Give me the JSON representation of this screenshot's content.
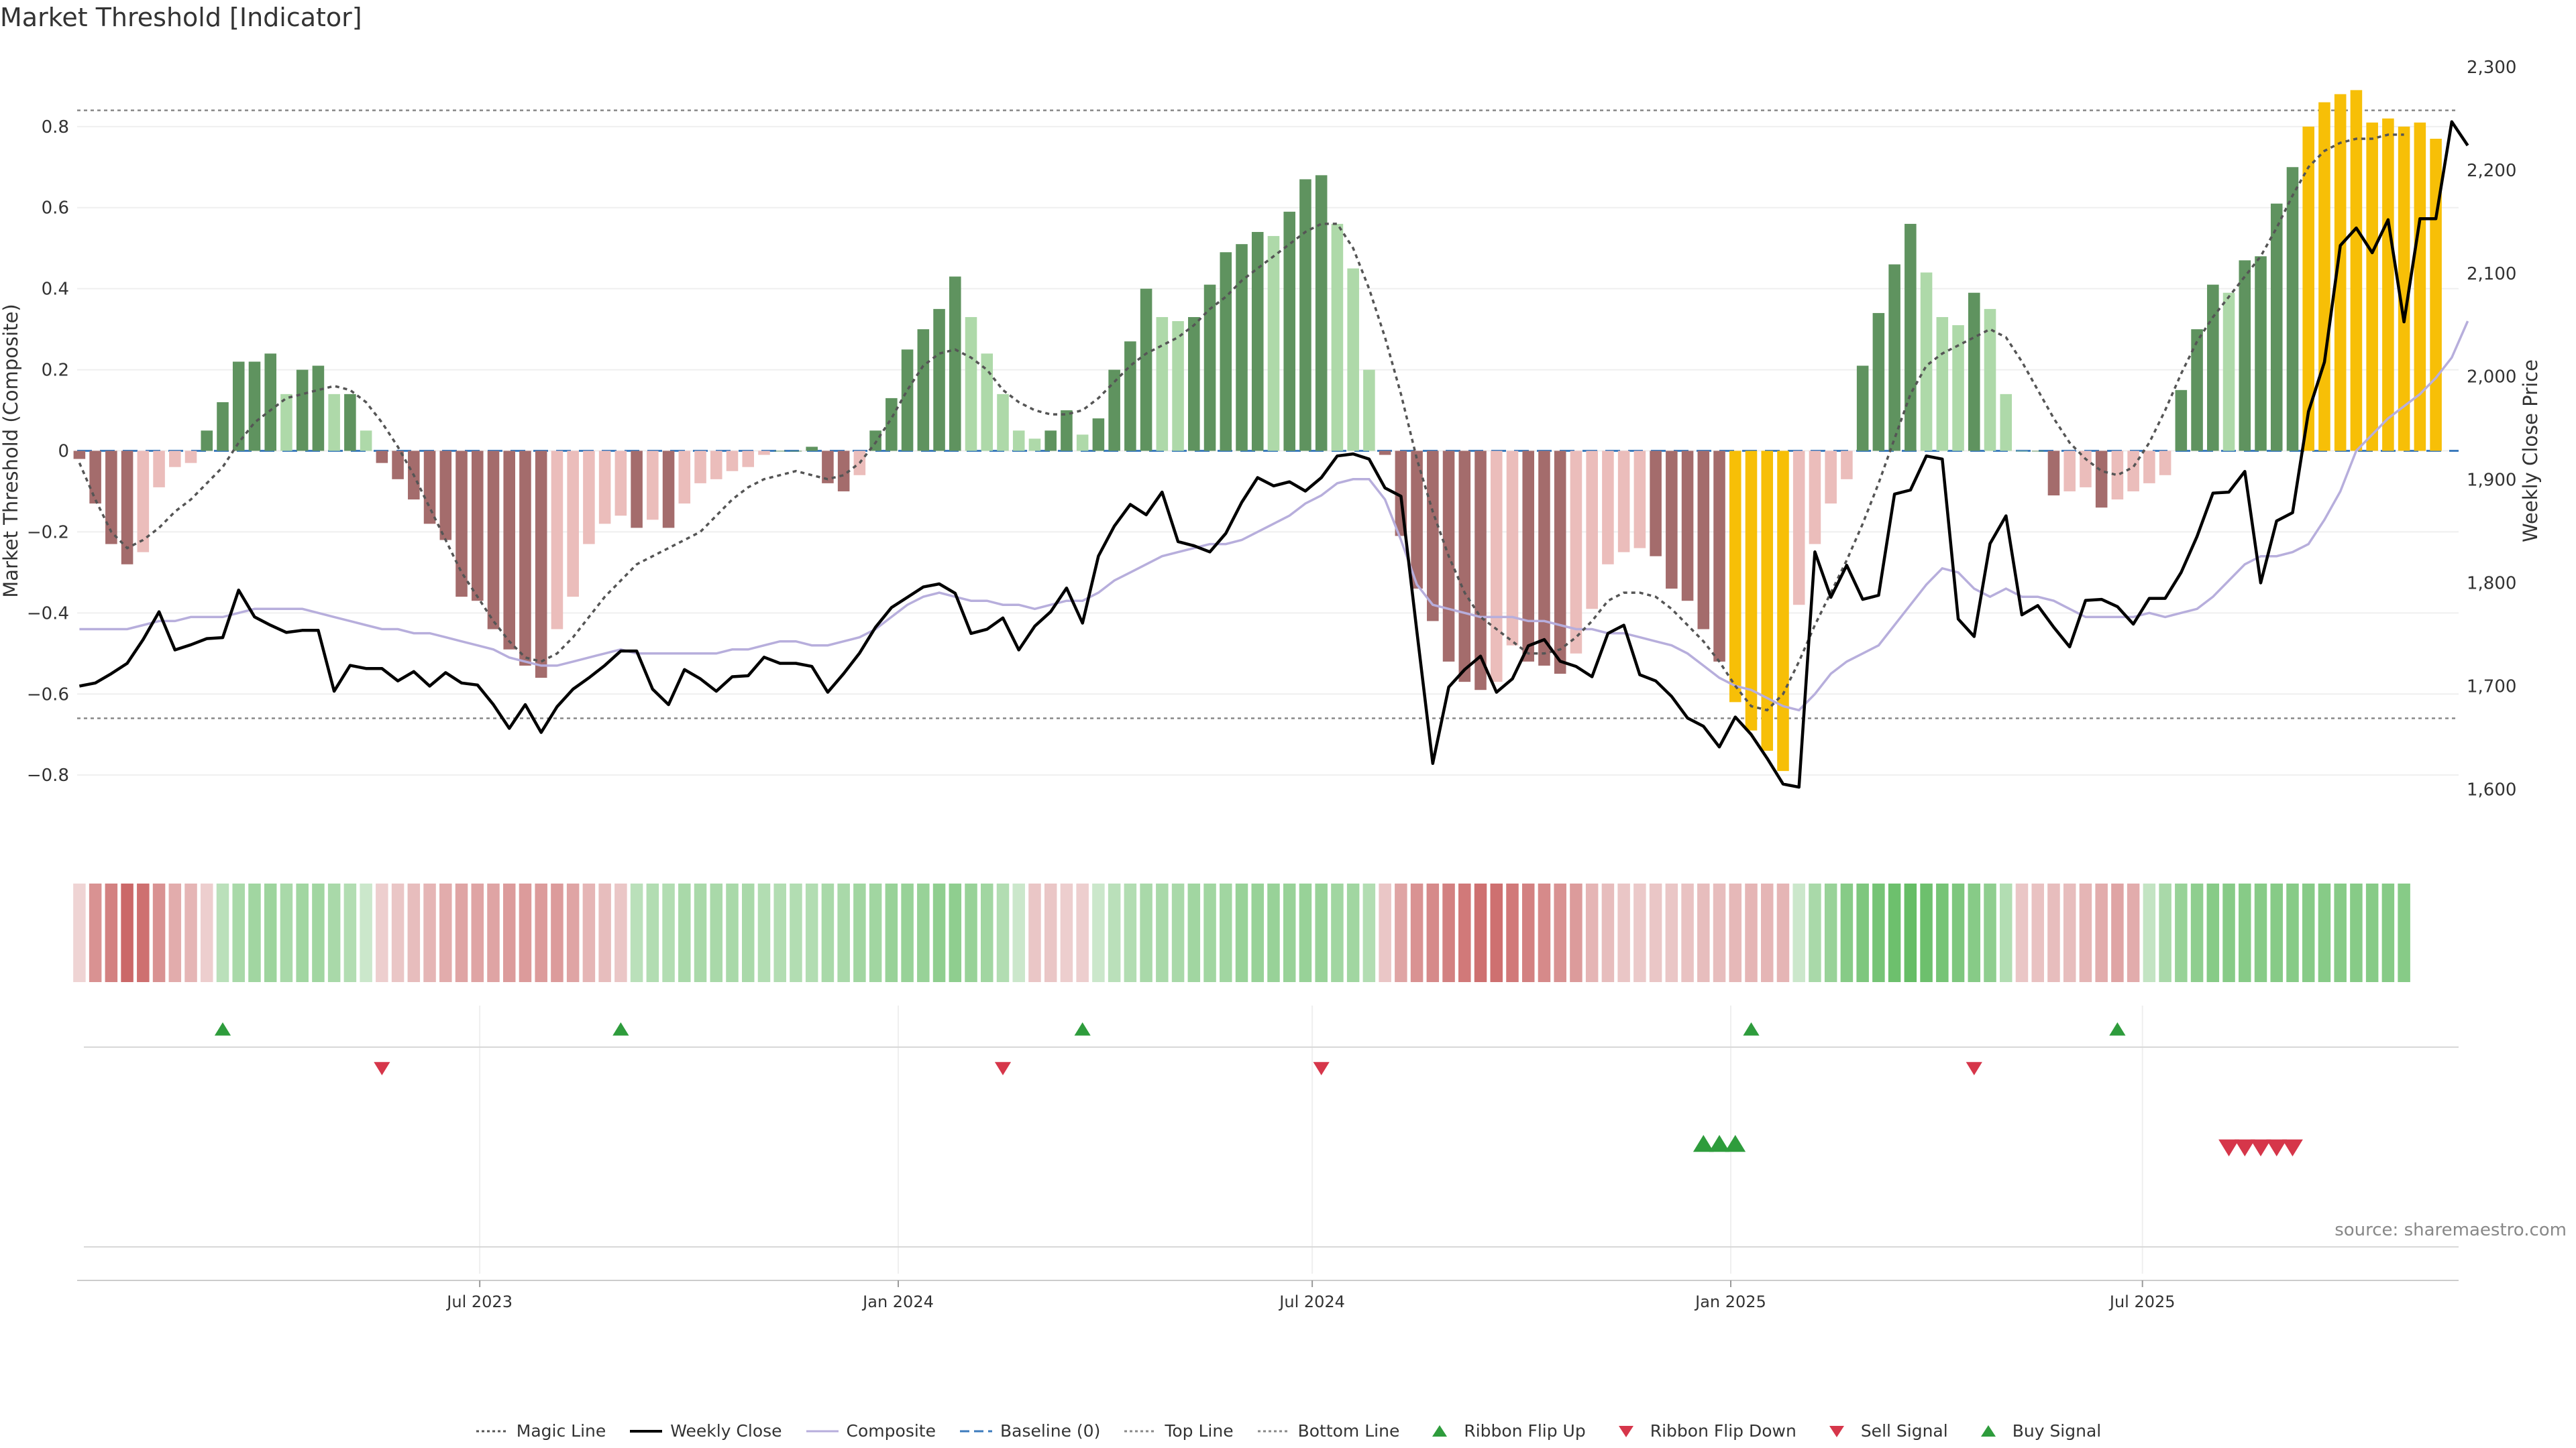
{
  "title": "Market Threshold [Indicator]",
  "source": "source: sharemaestro.com",
  "colors": {
    "strong_pos": "#5f935f",
    "weak_pos": "#aed9a9",
    "strong_neg": "#a46c6c",
    "weak_neg": "#ebbdbb",
    "extreme": "#f7bf07",
    "close": "#000000",
    "composite": "#b7aedc",
    "magic": "#555555",
    "baseline": "#3c7bbd",
    "threshold": "#888888",
    "buy": "#2e9c3c",
    "sell": "#d6364a"
  },
  "chart_data": {
    "type": "bar",
    "ylabel": "Market Threshold (Composite)",
    "y2label": "Weekly Close Price",
    "ylim": [
      -0.98,
      0.98
    ],
    "yticks": [
      -0.8,
      -0.6,
      -0.4,
      -0.2,
      0,
      0.2,
      0.4,
      0.6,
      0.8
    ],
    "ytick_labels": [
      "−0.8",
      "−0.6",
      "−0.4",
      "−0.2",
      "0",
      "0.2",
      "0.4",
      "0.6",
      "0.8"
    ],
    "y2lim": [
      1543,
      2313
    ],
    "y2ticks": [
      1600,
      1700,
      1800,
      1900,
      2000,
      2100,
      2200,
      2300
    ],
    "y2tick_labels": [
      "1,600",
      "1,700",
      "1,800",
      "1,900",
      "2,000",
      "2,100",
      "2,200",
      "2,300"
    ],
    "xlim": [
      "2023-01-05",
      "2025-11-17"
    ],
    "xticks": [
      {
        "date": "2023-07-01",
        "label": "Jul 2023"
      },
      {
        "date": "2024-01-01",
        "label": "Jan 2024"
      },
      {
        "date": "2024-07-01",
        "label": "Jul 2024"
      },
      {
        "date": "2025-01-01",
        "label": "Jan 2025"
      },
      {
        "date": "2025-07-01",
        "label": "Jul 2025"
      }
    ],
    "top_line": 0.84,
    "bottom_line": -0.66,
    "start_date": "2023-01-06",
    "bars": [
      -0.02,
      -0.13,
      -0.23,
      -0.28,
      -0.25,
      -0.09,
      -0.04,
      -0.03,
      0.05,
      0.12,
      0.22,
      0.22,
      0.24,
      0.14,
      0.2,
      0.21,
      0.14,
      0.14,
      0.05,
      -0.03,
      -0.07,
      -0.12,
      -0.18,
      -0.22,
      -0.36,
      -0.37,
      -0.44,
      -0.49,
      -0.53,
      -0.56,
      -0.44,
      -0.36,
      -0.23,
      -0.18,
      -0.16,
      -0.19,
      -0.17,
      -0.19,
      -0.13,
      -0.08,
      -0.07,
      -0.05,
      -0.04,
      -0.01,
      0,
      0,
      0.01,
      -0.08,
      -0.1,
      -0.06,
      0.05,
      0.13,
      0.25,
      0.3,
      0.35,
      0.43,
      0.33,
      0.24,
      0.14,
      0.05,
      0.03,
      0.05,
      0.1,
      0.04,
      0.08,
      0.2,
      0.27,
      0.4,
      0.33,
      0.32,
      0.33,
      0.41,
      0.49,
      0.51,
      0.54,
      0.53,
      0.59,
      0.67,
      0.68,
      0.56,
      0.45,
      0.2,
      -0.01,
      -0.21,
      -0.34,
      -0.42,
      -0.52,
      -0.57,
      -0.59,
      -0.57,
      -0.48,
      -0.52,
      -0.53,
      -0.55,
      -0.5,
      -0.39,
      -0.28,
      -0.25,
      -0.24,
      -0.26,
      -0.34,
      -0.37,
      -0.44,
      -0.52,
      -0.62,
      -0.69,
      -0.74,
      -0.79,
      -0.38,
      -0.23,
      -0.13,
      -0.07,
      0.21,
      0.34,
      0.46,
      0.56,
      0.44,
      0.33,
      0.31,
      0.39,
      0.35,
      0.14,
      0,
      0,
      -0.11,
      -0.1,
      -0.09,
      -0.14,
      -0.12,
      -0.1,
      -0.08,
      -0.06,
      0.15,
      0.3,
      0.41,
      0.39,
      0.47,
      0.48,
      0.61,
      0.7,
      0.8,
      0.86,
      0.88,
      0.89,
      0.81,
      0.82,
      0.8,
      0.81,
      0.77
    ],
    "series": [
      {
        "name": "Weekly Close",
        "values": [
          1700,
          1703,
          1712,
          1722,
          1745,
          1772,
          1735,
          1740,
          1746,
          1747,
          1793,
          1767,
          1759,
          1752,
          1754,
          1754,
          1695,
          1720,
          1717,
          1717,
          1705,
          1714,
          1700,
          1713,
          1703,
          1701,
          1682,
          1659,
          1682,
          1655,
          1680,
          1697,
          1708,
          1720,
          1734,
          1734,
          1697,
          1682,
          1716,
          1707,
          1695,
          1709,
          1710,
          1728,
          1722,
          1722,
          1719,
          1694,
          1712,
          1732,
          1757,
          1776,
          1786,
          1796,
          1799,
          1790,
          1751,
          1755,
          1766,
          1735,
          1758,
          1772,
          1795,
          1761,
          1826,
          1855,
          1876,
          1866,
          1888,
          1840,
          1836,
          1830,
          1848,
          1878,
          1902,
          1894,
          1898,
          1889,
          1902,
          1923,
          1925,
          1920,
          1892,
          1884,
          1753,
          1625,
          1699,
          1716,
          1729,
          1694,
          1707,
          1739,
          1745,
          1724,
          1719,
          1709,
          1751,
          1759,
          1711,
          1705,
          1690,
          1669,
          1661,
          1641,
          1670,
          1653,
          1630,
          1605,
          1602,
          1830,
          1786,
          1817,
          1784,
          1788,
          1886,
          1890,
          1923,
          1920,
          1765,
          1748,
          1838,
          1865,
          1769,
          1778,
          1757,
          1738,
          1783,
          1784,
          1777,
          1760,
          1785,
          1785,
          1810,
          1845,
          1887,
          1888,
          1908,
          1800,
          1860,
          1868,
          1966,
          2014,
          2127,
          2144,
          2120,
          2152,
          2053,
          2153,
          2153,
          2247,
          2224
        ]
      },
      {
        "name": "Composite",
        "values": [
          -0.44,
          -0.44,
          -0.44,
          -0.44,
          -0.43,
          -0.42,
          -0.42,
          -0.41,
          -0.41,
          -0.41,
          -0.4,
          -0.39,
          -0.39,
          -0.39,
          -0.39,
          -0.4,
          -0.41,
          -0.42,
          -0.43,
          -0.44,
          -0.44,
          -0.45,
          -0.45,
          -0.46,
          -0.47,
          -0.48,
          -0.49,
          -0.51,
          -0.52,
          -0.53,
          -0.53,
          -0.52,
          -0.51,
          -0.5,
          -0.49,
          -0.5,
          -0.5,
          -0.5,
          -0.5,
          -0.5,
          -0.5,
          -0.49,
          -0.49,
          -0.48,
          -0.47,
          -0.47,
          -0.48,
          -0.48,
          -0.47,
          -0.46,
          -0.44,
          -0.41,
          -0.38,
          -0.36,
          -0.35,
          -0.36,
          -0.37,
          -0.37,
          -0.38,
          -0.38,
          -0.39,
          -0.38,
          -0.37,
          -0.37,
          -0.35,
          -0.32,
          -0.3,
          -0.28,
          -0.26,
          -0.25,
          -0.24,
          -0.23,
          -0.23,
          -0.22,
          -0.2,
          -0.18,
          -0.16,
          -0.13,
          -0.11,
          -0.08,
          -0.07,
          -0.07,
          -0.12,
          -0.22,
          -0.33,
          -0.38,
          -0.39,
          -0.4,
          -0.41,
          -0.41,
          -0.41,
          -0.42,
          -0.42,
          -0.43,
          -0.44,
          -0.44,
          -0.45,
          -0.45,
          -0.46,
          -0.47,
          -0.48,
          -0.5,
          -0.53,
          -0.56,
          -0.58,
          -0.59,
          -0.61,
          -0.63,
          -0.64,
          -0.6,
          -0.55,
          -0.52,
          -0.5,
          -0.48,
          -0.43,
          -0.38,
          -0.33,
          -0.29,
          -0.3,
          -0.34,
          -0.36,
          -0.34,
          -0.36,
          -0.36,
          -0.37,
          -0.39,
          -0.41,
          -0.41,
          -0.41,
          -0.41,
          -0.4,
          -0.41,
          -0.4,
          -0.39,
          -0.36,
          -0.32,
          -0.28,
          -0.26,
          -0.26,
          -0.25,
          -0.23,
          -0.17,
          -0.1,
          0,
          0.04,
          0.08,
          0.11,
          0.14,
          0.18,
          0.23,
          0.32
        ]
      },
      {
        "name": "Magic Line",
        "values": [
          -0.03,
          -0.12,
          -0.2,
          -0.24,
          -0.22,
          -0.19,
          -0.15,
          -0.12,
          -0.08,
          -0.04,
          0.02,
          0.07,
          0.1,
          0.13,
          0.14,
          0.15,
          0.16,
          0.15,
          0.12,
          0.07,
          0.01,
          -0.06,
          -0.14,
          -0.22,
          -0.3,
          -0.36,
          -0.42,
          -0.47,
          -0.51,
          -0.52,
          -0.5,
          -0.46,
          -0.41,
          -0.36,
          -0.32,
          -0.28,
          -0.26,
          -0.24,
          -0.22,
          -0.2,
          -0.16,
          -0.12,
          -0.09,
          -0.07,
          -0.06,
          -0.05,
          -0.06,
          -0.07,
          -0.06,
          -0.03,
          0.02,
          0.08,
          0.15,
          0.21,
          0.24,
          0.25,
          0.23,
          0.2,
          0.15,
          0.12,
          0.1,
          0.09,
          0.09,
          0.1,
          0.13,
          0.17,
          0.21,
          0.24,
          0.26,
          0.28,
          0.31,
          0.35,
          0.38,
          0.42,
          0.45,
          0.48,
          0.51,
          0.54,
          0.56,
          0.56,
          0.5,
          0.4,
          0.28,
          0.14,
          -0.02,
          -0.15,
          -0.26,
          -0.35,
          -0.41,
          -0.44,
          -0.47,
          -0.5,
          -0.5,
          -0.49,
          -0.46,
          -0.42,
          -0.37,
          -0.35,
          -0.35,
          -0.36,
          -0.39,
          -0.43,
          -0.47,
          -0.52,
          -0.58,
          -0.63,
          -0.64,
          -0.6,
          -0.52,
          -0.43,
          -0.35,
          -0.27,
          -0.18,
          -0.08,
          0.03,
          0.14,
          0.21,
          0.24,
          0.26,
          0.28,
          0.3,
          0.28,
          0.22,
          0.15,
          0.08,
          0.02,
          -0.02,
          -0.05,
          -0.06,
          -0.04,
          0.02,
          0.1,
          0.19,
          0.27,
          0.33,
          0.38,
          0.43,
          0.48,
          0.55,
          0.63,
          0.7,
          0.74,
          0.76,
          0.77,
          0.77,
          0.78,
          0.78
        ]
      }
    ],
    "ribbon": [
      -0.02,
      -0.4,
      -0.5,
      -0.65,
      -0.6,
      -0.4,
      -0.25,
      -0.2,
      -0.05,
      0.15,
      0.25,
      0.3,
      0.32,
      0.25,
      0.3,
      0.3,
      0.25,
      0.2,
      0.05,
      -0.05,
      -0.1,
      -0.15,
      -0.2,
      -0.25,
      -0.3,
      -0.3,
      -0.3,
      -0.35,
      -0.35,
      -0.35,
      -0.35,
      -0.3,
      -0.2,
      -0.15,
      -0.1,
      0.15,
      0.2,
      0.2,
      0.25,
      0.25,
      0.25,
      0.25,
      0.25,
      0.2,
      0.2,
      0.2,
      0.2,
      0.25,
      0.25,
      0.3,
      0.3,
      0.35,
      0.35,
      0.35,
      0.4,
      0.4,
      0.35,
      0.3,
      0.2,
      0.05,
      -0.1,
      -0.1,
      -0.05,
      -0.05,
      0.05,
      0.15,
      0.2,
      0.25,
      0.25,
      0.25,
      0.3,
      0.3,
      0.3,
      0.35,
      0.35,
      0.35,
      0.35,
      0.35,
      0.35,
      0.3,
      0.3,
      0.2,
      -0.1,
      -0.3,
      -0.4,
      -0.45,
      -0.5,
      -0.55,
      -0.6,
      -0.6,
      -0.55,
      -0.5,
      -0.45,
      -0.4,
      -0.35,
      -0.2,
      -0.15,
      -0.1,
      -0.08,
      -0.1,
      -0.1,
      -0.12,
      -0.15,
      -0.15,
      -0.18,
      -0.2,
      -0.2,
      -0.2,
      0.05,
      0.25,
      0.35,
      0.45,
      0.5,
      0.55,
      0.6,
      0.65,
      0.6,
      0.55,
      0.5,
      0.45,
      0.4,
      0.2,
      -0.1,
      -0.12,
      -0.15,
      -0.15,
      -0.2,
      -0.25,
      -0.3,
      -0.25,
      0.1,
      0.25,
      0.35,
      0.4,
      0.45,
      0.45,
      0.45,
      0.45,
      0.45,
      0.45,
      0.45,
      0.45,
      0.45,
      0.45,
      0.45,
      0.45,
      0.45
    ],
    "flip_up_indices": [
      9,
      34,
      63,
      105,
      128
    ],
    "flip_down_indices": [
      19,
      58,
      78,
      119
    ],
    "buy_signal_indices": [
      102,
      103,
      104
    ],
    "sell_signal_indices": [
      135,
      136,
      137,
      138,
      139
    ]
  },
  "legend": [
    {
      "key": "magic",
      "label": "Magic Line",
      "style": "dotted"
    },
    {
      "key": "close",
      "label": "Weekly Close",
      "style": "solid"
    },
    {
      "key": "composite",
      "label": "Composite",
      "style": "solid"
    },
    {
      "key": "baseline",
      "label": "Baseline (0)",
      "style": "dashed"
    },
    {
      "key": "threshold",
      "label": "Top Line",
      "style": "dotted"
    },
    {
      "key": "threshold",
      "label": "Bottom Line",
      "style": "dotted"
    },
    {
      "key": "buy",
      "label": "Ribbon Flip Up",
      "style": "tri-up"
    },
    {
      "key": "sell",
      "label": "Ribbon Flip Down",
      "style": "tri-down"
    },
    {
      "key": "sell",
      "label": "Sell Signal",
      "style": "tri-down"
    },
    {
      "key": "buy",
      "label": "Buy Signal",
      "style": "tri-up"
    }
  ]
}
